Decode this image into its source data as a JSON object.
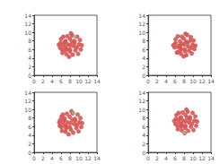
{
  "chart_data": [
    {
      "type": "scatter",
      "xlim": [
        0,
        14
      ],
      "ylim": [
        0,
        14
      ],
      "xticks": [
        0,
        2,
        4,
        6,
        8,
        10,
        12,
        14
      ],
      "yticks": [
        0,
        2,
        4,
        6,
        8,
        10,
        12,
        14
      ],
      "grid": false,
      "series": [
        {
          "color": "#d65454",
          "x": [
            8,
            7,
            9,
            6.5,
            9.5,
            8,
            8,
            7,
            9,
            7,
            9.2,
            6.2,
            10,
            5.9,
            8.5,
            7.4,
            8.6,
            7.2,
            10.2,
            6,
            10.4,
            5.8,
            8,
            8.8,
            7.5,
            6.8,
            9.6,
            6.5,
            9.8,
            6.3,
            8.2,
            7.8,
            10.6,
            5.5,
            8.4,
            7.3
          ],
          "values": [
            7,
            6.5,
            7.5,
            7,
            6.5,
            8.5,
            5.5,
            8,
            8,
            5.8,
            5.8,
            6,
            7.2,
            7.6,
            9.3,
            9.1,
            4.8,
            4.9,
            8.2,
            8.5,
            6,
            6.4,
            6,
            6.8,
            7.2,
            7.7,
            9,
            9,
            5,
            5.2,
            9.8,
            4.3,
            7,
            7.1,
            7.8,
            6.1
          ]
        },
        {
          "color": "#8fbc8f",
          "x": [
            9
          ],
          "values": [
            9
          ]
        }
      ]
    },
    {
      "type": "scatter",
      "xlim": [
        0,
        14
      ],
      "ylim": [
        0,
        14
      ],
      "xticks": [
        0,
        2,
        4,
        6,
        8,
        10,
        12,
        14
      ],
      "yticks": [
        0,
        2,
        4,
        6,
        8,
        10,
        12,
        14
      ],
      "grid": false,
      "series": [
        {
          "color": "#d65454",
          "x": [
            7.3,
            8.4,
            5.6,
            10.5,
            7.9,
            8.3,
            6.4,
            9.7,
            6.6,
            9.5,
            6.9,
            7.6,
            8.9,
            8.1,
            5.9,
            10.3,
            6.1,
            10.1,
            7.3,
            8.5,
            7.5,
            8.7,
            6.1,
            9.9,
            7.2,
            9.1,
            7.1,
            9.4,
            6.6,
            9.6,
            7.9,
            8.2,
            8.8,
            6.6,
            7.1,
            8.1
          ],
          "values": [
            6.2,
            7.9,
            7.0,
            6.9,
            4.4,
            9.7,
            5.3,
            5.1,
            9.1,
            8.9,
            6.9,
            7.3,
            6.7,
            6.1,
            6.5,
            6.1,
            8.4,
            8.1,
            5.0,
            4.7,
            9.0,
            9.4,
            7.5,
            7.1,
            5.9,
            5.7,
            7.9,
            8.1,
            5.4,
            6.4,
            8.6,
            5.6,
            7.6,
            6.6,
            6.9,
            7.2
          ]
        }
      ]
    },
    {
      "type": "scatter",
      "xlim": [
        0,
        14
      ],
      "ylim": [
        0,
        14
      ],
      "xticks": [
        0,
        2,
        4,
        6,
        8,
        10,
        12,
        14
      ],
      "yticks": [
        0,
        2,
        4,
        6,
        8,
        10,
        12,
        14
      ],
      "grid": false,
      "series": [
        {
          "color": "#d65454",
          "x": [
            8.1,
            6.9,
            9.2,
            6.4,
            9.6,
            7.9,
            8.2,
            6.8,
            9.1,
            7.1,
            9.4,
            6.1,
            10.1,
            5.8,
            8.6,
            7.3,
            8.7,
            7.0,
            10.3,
            6.1,
            10.5,
            5.7,
            7.9,
            8.9,
            7.4,
            6.7,
            9.7,
            6.4,
            9.9,
            6.2,
            8.3,
            7.7,
            10.7,
            5.6,
            8.5,
            7.2
          ],
          "values": [
            6.8,
            6.3,
            7.4,
            6.9,
            6.4,
            8.3,
            5.3,
            7.9,
            7.8,
            5.6,
            5.7,
            5.9,
            7.0,
            7.5,
            9.1,
            9.0,
            4.6,
            4.8,
            8.0,
            8.3,
            5.9,
            6.2,
            5.9,
            6.6,
            7.0,
            7.5,
            8.8,
            8.8,
            4.9,
            5.0,
            9.6,
            4.2,
            6.8,
            7.0,
            7.6,
            6.0
          ]
        },
        {
          "color": "#8fbc8f",
          "x": [
            8.8
          ],
          "values": [
            9.2
          ]
        }
      ]
    },
    {
      "type": "scatter",
      "xlim": [
        0,
        14
      ],
      "ylim": [
        0,
        14
      ],
      "xticks": [
        0,
        2,
        4,
        6,
        8,
        10,
        12,
        14
      ],
      "yticks": [
        0,
        2,
        4,
        6,
        8,
        10,
        12,
        14
      ],
      "grid": false,
      "series": [
        {
          "color": "#d65454",
          "x": [
            8.3,
            7.3,
            9.3,
            6.8,
            9.8,
            8.3,
            8.3,
            7.3,
            9.3,
            7.3,
            9.5,
            6.5,
            10.3,
            6.2,
            8.8,
            7.7,
            8.9,
            7.5,
            10.5,
            6.3,
            10.7,
            6.1,
            8.3,
            9.1,
            7.8,
            7.1,
            9.9,
            6.8,
            10.1,
            6.6,
            8.5,
            8.1,
            10.9,
            5.8,
            8.7,
            7.6
          ],
          "values": [
            7.2,
            6.7,
            7.7,
            7.2,
            6.7,
            8.7,
            5.7,
            8.2,
            8.2,
            6.0,
            6.0,
            6.2,
            7.4,
            7.8,
            9.5,
            9.3,
            5.0,
            5.1,
            8.4,
            8.7,
            6.2,
            6.6,
            6.2,
            7.0,
            7.4,
            7.9,
            9.2,
            9.2,
            5.2,
            5.4,
            10.0,
            4.5,
            7.2,
            7.3,
            8.0,
            6.3
          ]
        },
        {
          "color": "#8fbc8f",
          "x": [
            8
          ],
          "values": [
            4.6
          ]
        }
      ]
    }
  ]
}
